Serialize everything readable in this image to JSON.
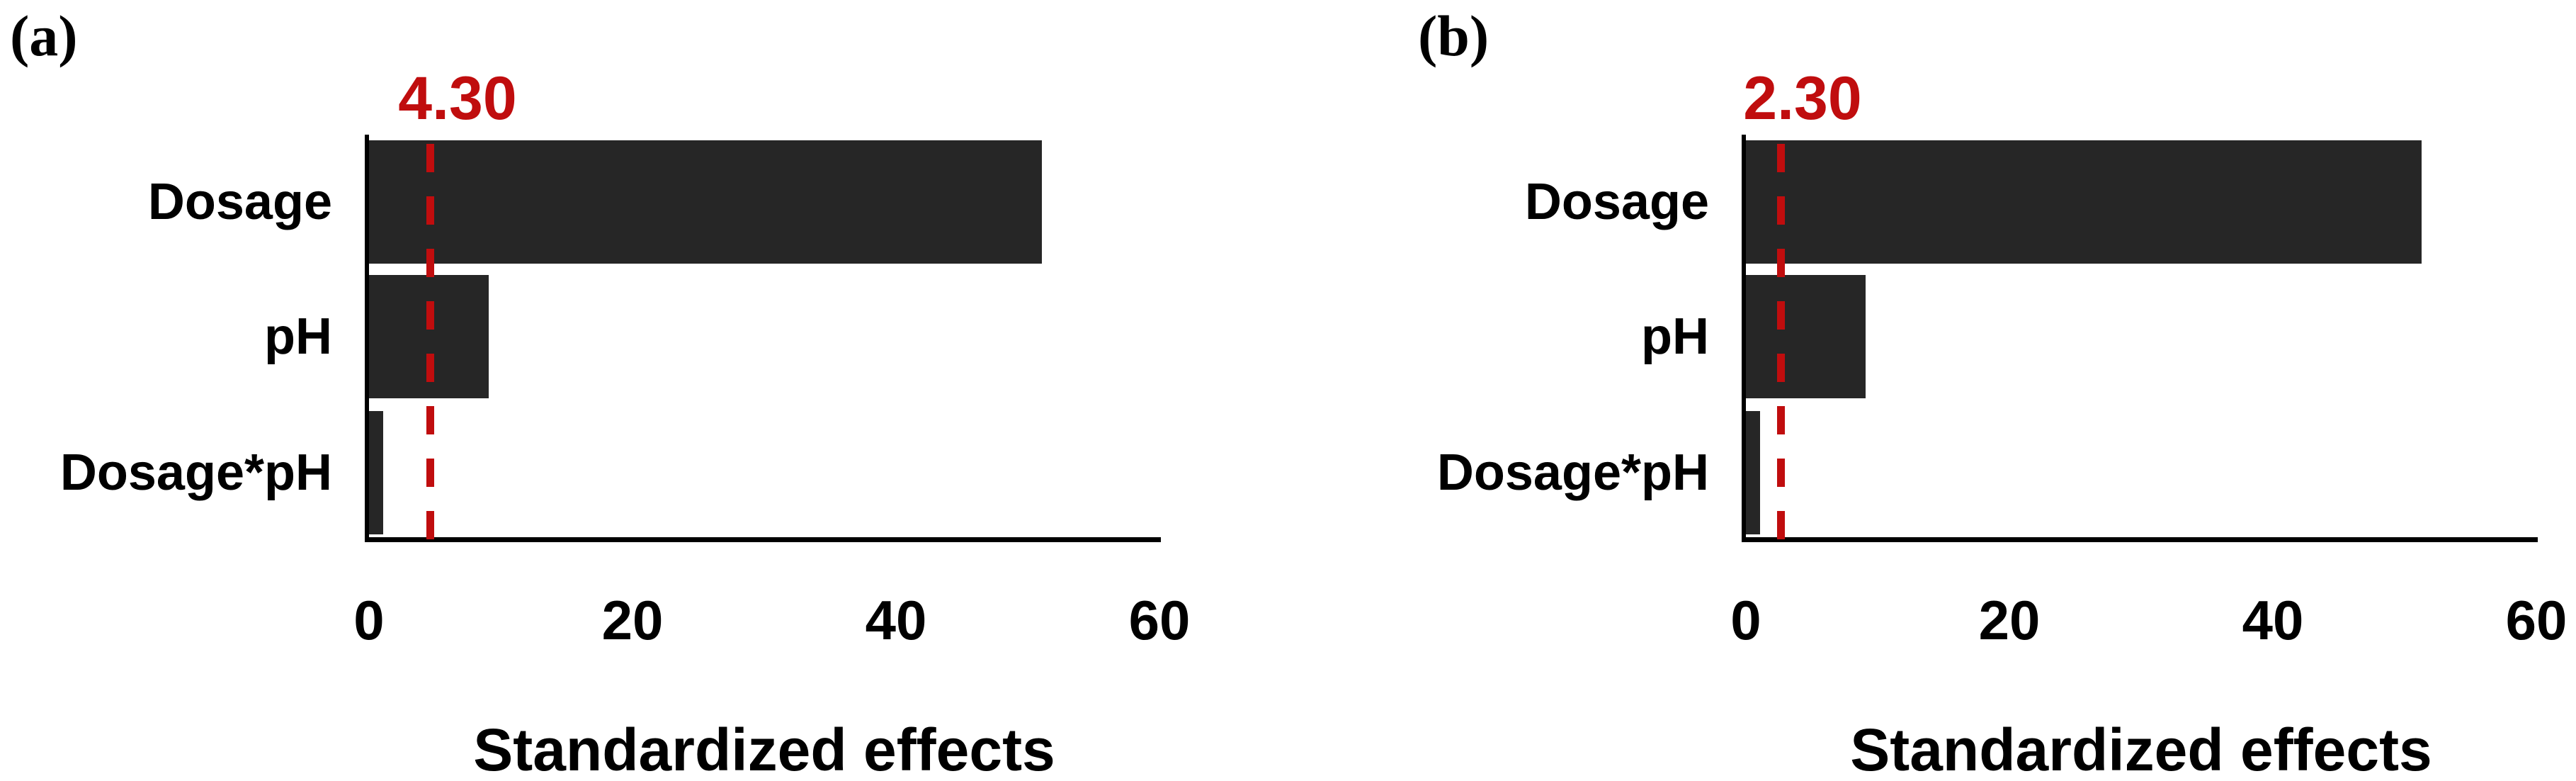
{
  "figure": {
    "background": "#FFFFFF",
    "colors": {
      "bar": "#262626",
      "axis": "#000000",
      "critical_line": "#C00D0E",
      "critical_text": "#C00D0E",
      "text": "#000000"
    }
  },
  "chart_data": [
    {
      "type": "bar",
      "orientation": "horizontal",
      "panel_label": "(a)",
      "categories": [
        "Dosage",
        "pH",
        "Dosage*pH"
      ],
      "values": [
        51.1,
        9.1,
        1.1
      ],
      "critical_value": 4.3,
      "critical_label": "4.30",
      "xlabel": "Standardized effects",
      "ylabel": "",
      "x_ticks": [
        0,
        20,
        40,
        60
      ],
      "xlim": [
        0,
        60
      ],
      "grid": false,
      "legend": false,
      "bar_color": "#262626",
      "critical_line_color": "#C00D0E",
      "critical_line_style": "dashed"
    },
    {
      "type": "bar",
      "orientation": "horizontal",
      "panel_label": "(b)",
      "categories": [
        "Dosage",
        "pH",
        "Dosage*pH"
      ],
      "values": [
        51.3,
        9.1,
        1.1
      ],
      "critical_value": 2.3,
      "critical_label": "2.30",
      "xlabel": "Standardized effects",
      "ylabel": "",
      "x_ticks": [
        0,
        20,
        40,
        60
      ],
      "xlim": [
        0,
        60
      ],
      "grid": false,
      "legend": false,
      "bar_color": "#262626",
      "critical_line_color": "#C00D0E",
      "critical_line_style": "dashed"
    }
  ]
}
